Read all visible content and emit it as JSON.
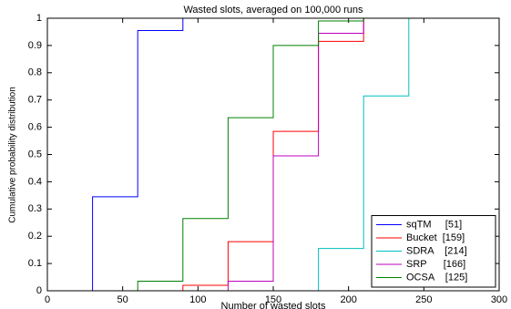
{
  "chart_data": {
    "type": "stairs",
    "title": "Wasted slots, averaged on 100,000 runs",
    "x_label": "Number of wasted slots",
    "y_label": "Cumulative probability distribution",
    "x": [
      0,
      30,
      60,
      90,
      120,
      150,
      180,
      210,
      240,
      270
    ],
    "series": [
      {
        "name": "sqTM     [51]",
        "color": "#0000ff",
        "values": [
          0,
          0.345,
          0.955,
          1,
          1,
          null,
          null,
          null,
          null,
          null
        ]
      },
      {
        "name": "Bucket  [159]",
        "color": "#ff0000",
        "values": [
          null,
          null,
          0,
          0.02,
          0.18,
          0.585,
          0.915,
          1,
          1,
          null
        ]
      },
      {
        "name": "SDRA    [214]",
        "color": "#00bfbf",
        "values": [
          null,
          null,
          null,
          null,
          null,
          0,
          0.155,
          0.715,
          1,
          1
        ]
      },
      {
        "name": "SRP      [166]",
        "color": "#bf00bf",
        "values": [
          null,
          null,
          null,
          0,
          0.035,
          0.495,
          0.945,
          1,
          1,
          1
        ]
      },
      {
        "name": "OCSA    [125]",
        "color": "#008000",
        "values": [
          null,
          0,
          0.035,
          0.265,
          0.635,
          0.9,
          0.99,
          1,
          1,
          null
        ]
      }
    ],
    "xlim": [
      0,
      300
    ],
    "xticks": [
      0,
      50,
      100,
      150,
      200,
      250,
      300
    ],
    "ylim": [
      0,
      1
    ],
    "yticks": [
      0,
      0.1,
      0.2,
      0.3,
      0.4,
      0.5,
      0.6,
      0.7,
      0.8,
      0.9,
      1
    ],
    "legend": "lower right"
  }
}
